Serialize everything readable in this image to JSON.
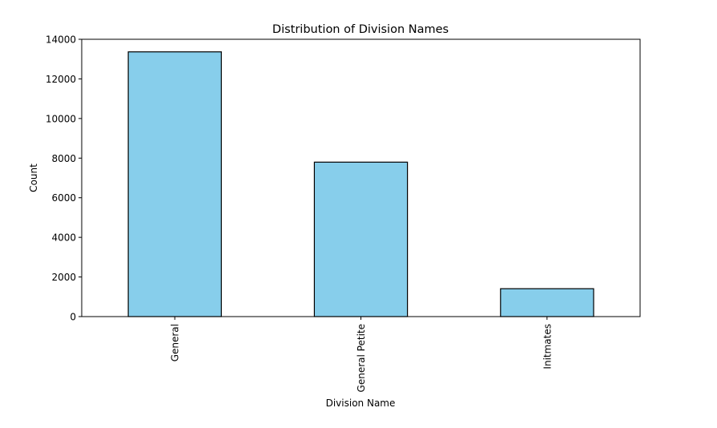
{
  "chart_data": {
    "type": "bar",
    "title": "Distribution of Division Names",
    "xlabel": "Division Name",
    "ylabel": "Count",
    "categories": [
      "General",
      "General Petite",
      "Initmates"
    ],
    "values": [
      13365,
      7797,
      1410
    ],
    "ylim": [
      0,
      14000
    ],
    "yticks": [
      0,
      2000,
      4000,
      6000,
      8000,
      10000,
      12000,
      14000
    ],
    "x_tick_rotation": "vertical",
    "grid": false,
    "legend": "none",
    "bar_color": "#87ceeb",
    "bar_edge_color": "#000000"
  }
}
